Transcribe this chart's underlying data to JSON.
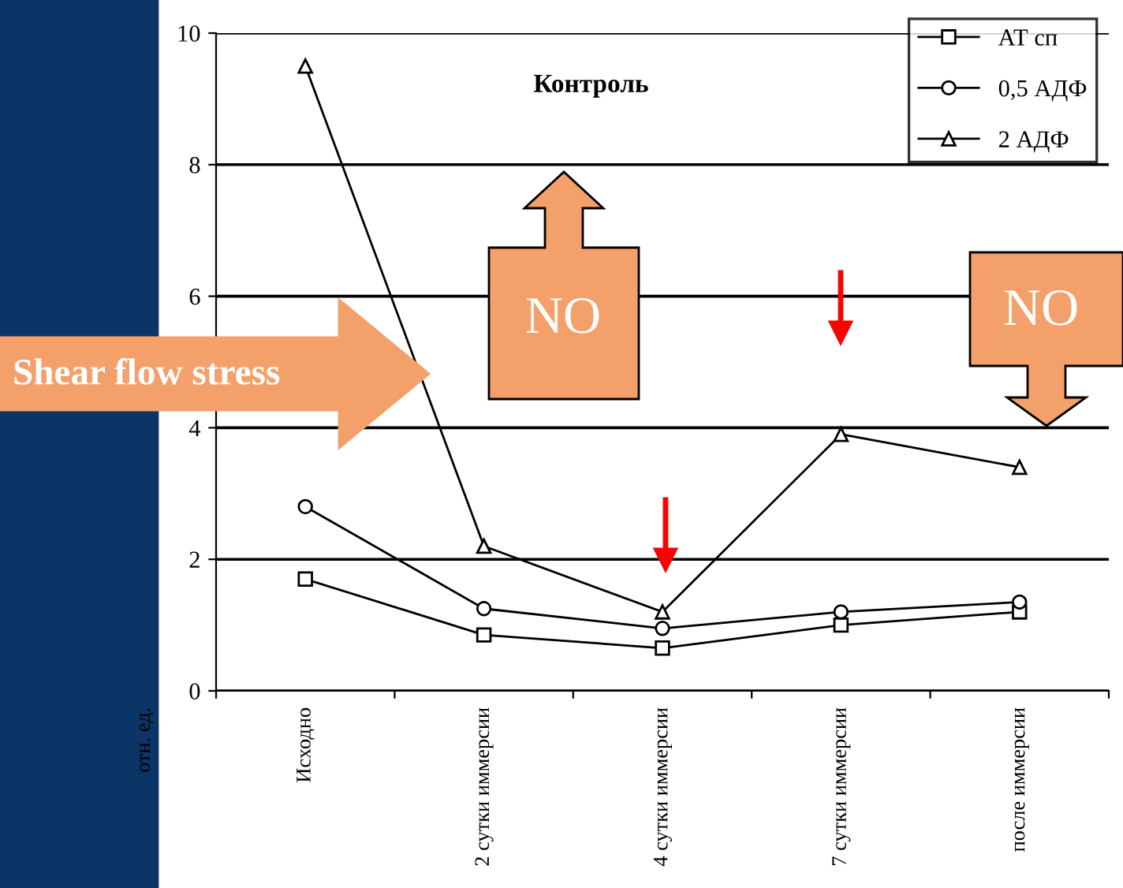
{
  "chart_data": {
    "type": "line",
    "title": "Контроль",
    "ylabel": "отн. ед.",
    "categories": [
      "Исходно",
      "2 сутки иммерсии",
      "4 сутки иммерсии",
      "7 сутки иммерсии",
      "после иммерсии"
    ],
    "series": [
      {
        "name": "АТ сп",
        "color": "#000000",
        "marker": "square",
        "values": [
          1.7,
          0.85,
          0.65,
          1.0,
          1.2
        ]
      },
      {
        "name": "0,5 АДФ",
        "color": "#000000",
        "marker": "circle",
        "values": [
          2.8,
          1.25,
          0.95,
          1.2,
          1.35
        ]
      },
      {
        "name": "2 АДФ",
        "color": "#000000",
        "marker": "triangle",
        "values": [
          9.5,
          2.2,
          1.2,
          3.9,
          3.4
        ]
      }
    ],
    "ylim": [
      0,
      10
    ],
    "yticks": [
      0,
      2,
      4,
      6,
      8,
      10
    ],
    "grid": "y",
    "legend": "top right",
    "line_style": "solid",
    "annotations": [
      "Shear flow stress",
      "NO",
      "NO"
    ]
  }
}
